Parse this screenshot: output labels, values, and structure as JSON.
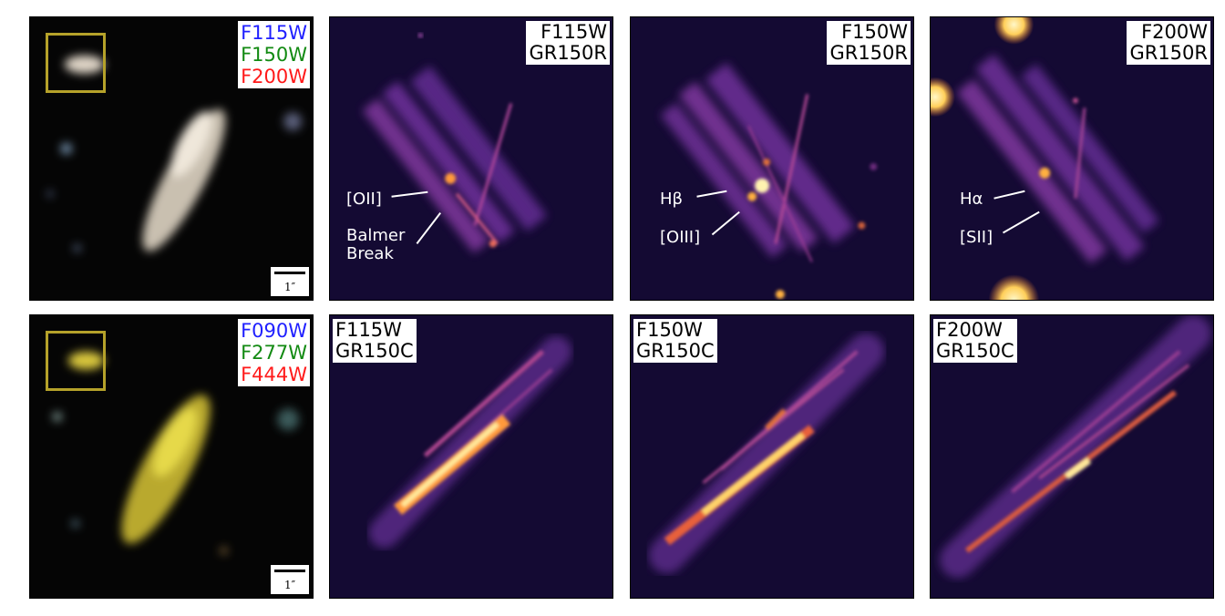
{
  "rows": [
    {
      "filters": [
        {
          "label": "F115W",
          "color": "#2020ff"
        },
        {
          "label": "F150W",
          "color": "#128a12"
        },
        {
          "label": "F200W",
          "color": "#ff1a1a"
        }
      ],
      "scalebar": "1″",
      "spectra": [
        {
          "filter": "F115W",
          "grism": "GR150R"
        },
        {
          "filter": "F150W",
          "grism": "GR150R"
        },
        {
          "filter": "F200W",
          "grism": "GR150R"
        }
      ]
    },
    {
      "filters": [
        {
          "label": "F090W",
          "color": "#2020ff"
        },
        {
          "label": "F277W",
          "color": "#128a12"
        },
        {
          "label": "F444W",
          "color": "#ff1a1a"
        }
      ],
      "scalebar": "1″",
      "spectra": [
        {
          "filter": "F115W",
          "grism": "GR150C"
        },
        {
          "filter": "F150W",
          "grism": "GR150C"
        },
        {
          "filter": "F200W",
          "grism": "GR150C"
        }
      ]
    }
  ],
  "annotations": {
    "f115w": [
      "[OII]",
      "Balmer",
      "Break"
    ],
    "f150w": [
      "Hβ",
      "[OIII]"
    ],
    "f200w": [
      "Hα",
      "[SII]"
    ]
  }
}
